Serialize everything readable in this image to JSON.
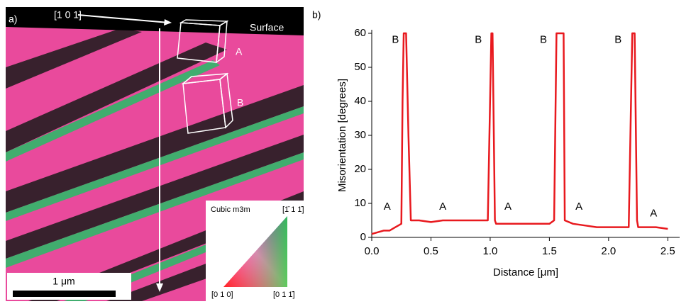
{
  "micrograph": {
    "label": "a)",
    "direction": "[1 0 1]",
    "surface": "Surface",
    "cube_a": "A",
    "cube_b": "B",
    "scale": "1 μm",
    "key": {
      "title": "Cubic m3m",
      "top": "[1̄ 1 1̄]",
      "left": "[0 1 0]",
      "right": "[0 1 1̄]"
    }
  },
  "chart_data": {
    "type": "line",
    "title": "b)",
    "x_label": "Distance [μm]",
    "y_label": "Misorientation [degrees]",
    "color": "#e8191e",
    "x": [
      0,
      0.05,
      0.1,
      0.15,
      0.2,
      0.25,
      0.26,
      0.27,
      0.29,
      0.31,
      0.33,
      0.4,
      0.5,
      0.6,
      0.7,
      0.8,
      0.9,
      0.98,
      1.01,
      1.02,
      1.04,
      1.05,
      1.1,
      1.2,
      1.3,
      1.4,
      1.5,
      1.54,
      1.56,
      1.58,
      1.62,
      1.63,
      1.7,
      1.8,
      1.9,
      2.0,
      2.1,
      2.17,
      2.2,
      2.22,
      2.24,
      2.25,
      2.3,
      2.4,
      2.5
    ],
    "values": [
      1,
      1.5,
      2,
      2,
      3,
      4,
      40,
      60,
      60,
      30,
      5,
      5,
      4.5,
      5,
      5,
      5,
      5,
      5,
      60,
      60,
      5,
      4,
      4,
      4,
      4,
      4,
      4,
      5,
      60,
      60,
      60,
      5,
      4,
      3.5,
      3,
      3,
      3,
      3,
      60,
      60,
      5,
      3,
      3,
      3,
      2.5
    ],
    "xlim": [
      0,
      2.6
    ],
    "ylim": [
      0,
      60
    ],
    "xticks": [
      {
        "value": 0,
        "label": "0.0"
      },
      0.5,
      {
        "value": 1,
        "label": "1.0"
      },
      1.5,
      {
        "value": 2,
        "label": "2.0"
      },
      2.5
    ],
    "yticks": [
      0,
      10,
      20,
      30,
      40,
      50,
      60
    ],
    "annotations": [
      {
        "text": "A",
        "x": 0.13,
        "y": 9
      },
      {
        "text": "B",
        "x": 0.2,
        "y": 58
      },
      {
        "text": "A",
        "x": 0.6,
        "y": 9
      },
      {
        "text": "B",
        "x": 0.9,
        "y": 58
      },
      {
        "text": "A",
        "x": 1.15,
        "y": 9
      },
      {
        "text": "B",
        "x": 1.45,
        "y": 58
      },
      {
        "text": "A",
        "x": 1.75,
        "y": 9
      },
      {
        "text": "B",
        "x": 2.08,
        "y": 58
      },
      {
        "text": "A",
        "x": 2.38,
        "y": 7
      }
    ]
  }
}
